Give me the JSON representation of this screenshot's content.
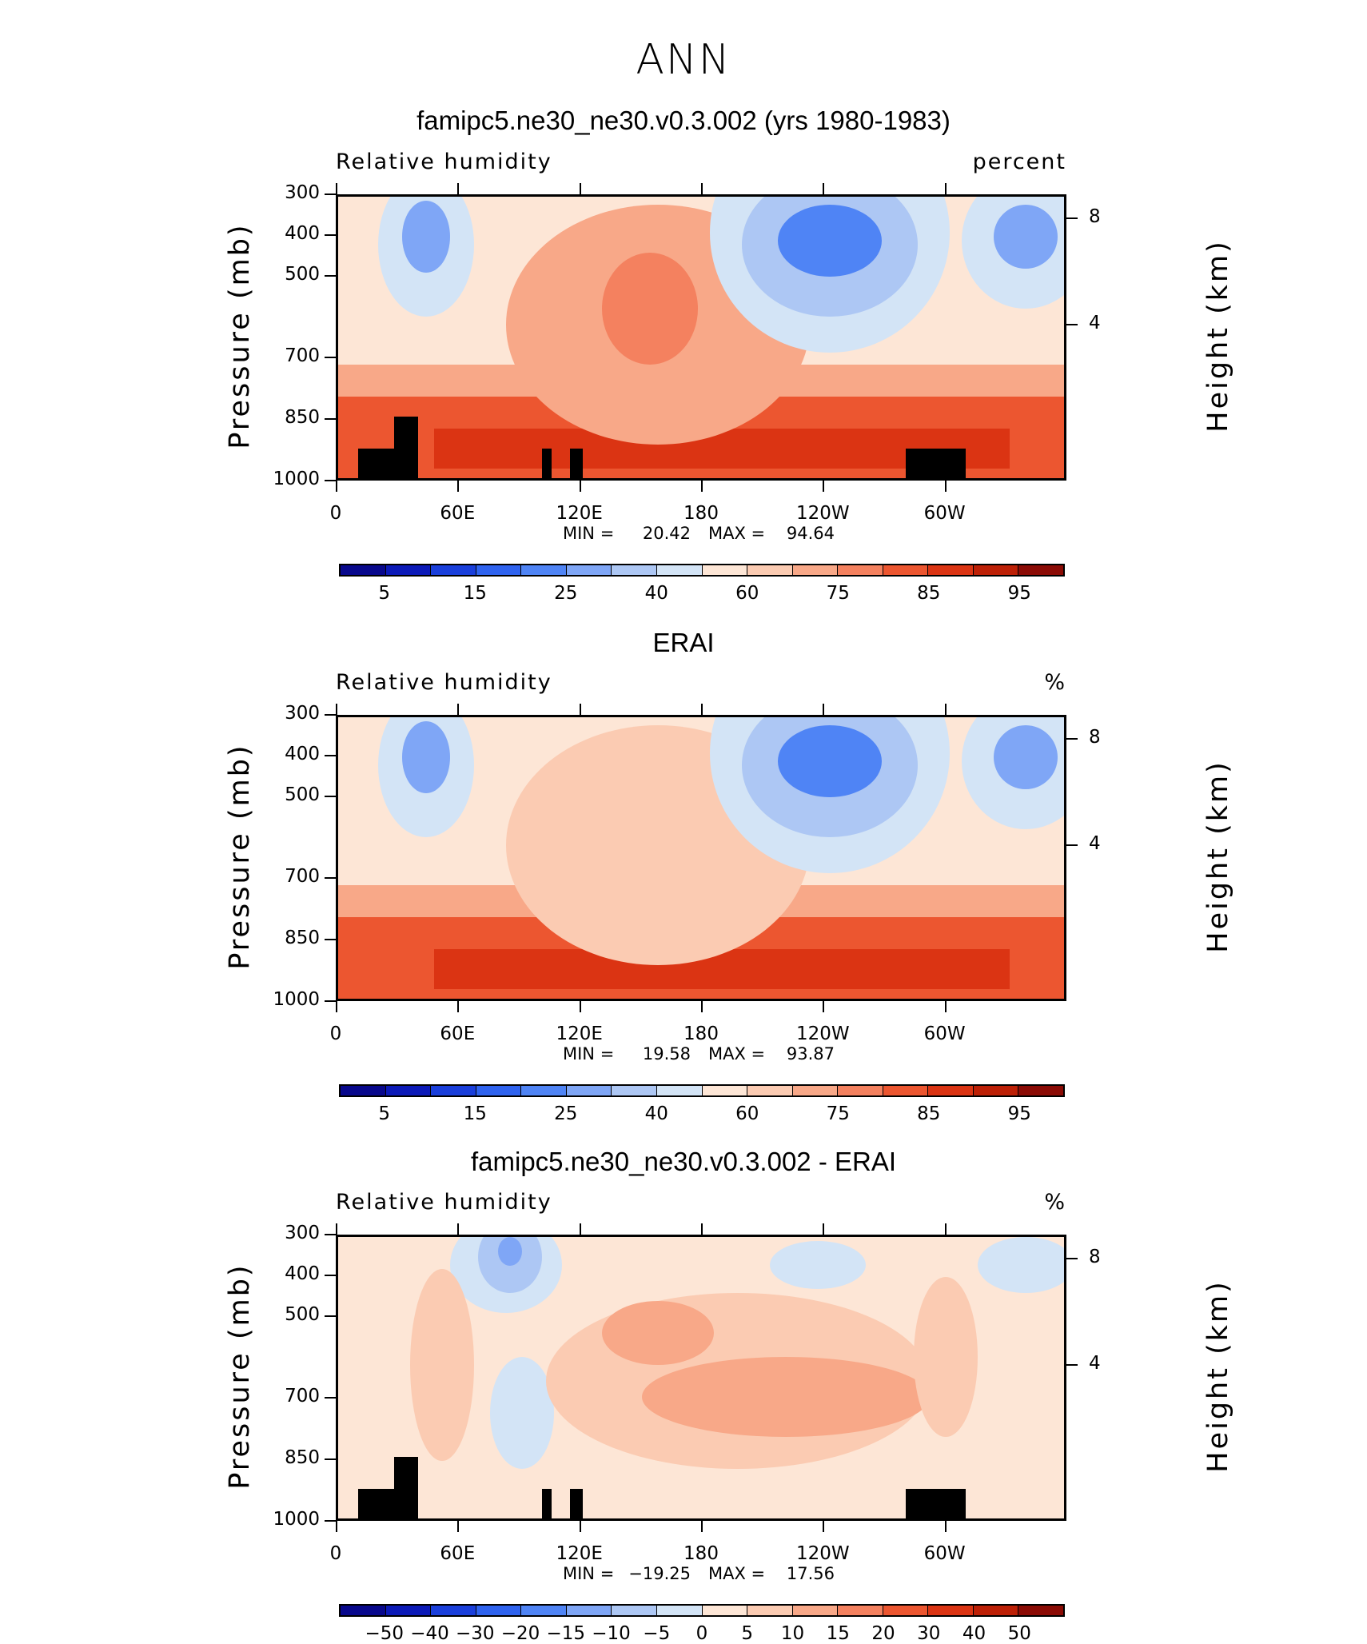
{
  "page": {
    "title": "ANN"
  },
  "palette": {
    "model_rh": [
      "#08088c",
      "#0c1ab8",
      "#1a3fdb",
      "#2f63ef",
      "#4f84f5",
      "#7fa6f6",
      "#adc7f4",
      "#d3e4f6",
      "#fde6d6",
      "#fbcbb2",
      "#f8a888",
      "#f4815f",
      "#ec5630",
      "#db3413",
      "#bd2006",
      "#8b0b05"
    ],
    "diff": [
      "#08088c",
      "#0c1ab8",
      "#1a3fdb",
      "#2f63ef",
      "#4f84f5",
      "#7fa6f6",
      "#adc7f4",
      "#d3e4f6",
      "#fde6d6",
      "#fbcbb2",
      "#f8a888",
      "#f4815f",
      "#ec5630",
      "#db3413",
      "#bd2006",
      "#8b0b05"
    ]
  },
  "panels": [
    {
      "title": "famipc5.ne30_ne30.v0.3.002 (yrs 1980-1983)",
      "variable": "Relative humidity",
      "units": "percent",
      "y_label": "Pressure (mb)",
      "y2_label": "Height (km)",
      "y_ticks": [
        "300",
        "400",
        "500",
        "700",
        "850",
        "1000"
      ],
      "y2_ticks": [
        "8",
        "4"
      ],
      "x_ticks": [
        "0",
        "60E",
        "120E",
        "180",
        "120W",
        "60W"
      ],
      "min_label": "MIN =",
      "min": "20.42",
      "max_label": "MAX =",
      "max": "94.64",
      "colorbar_labels": [
        "5",
        "15",
        "25",
        "40",
        "60",
        "75",
        "85",
        "95"
      ]
    },
    {
      "title": "ERAI",
      "variable": "Relative humidity",
      "units": "%",
      "y_label": "Pressure (mb)",
      "y2_label": "Height (km)",
      "y_ticks": [
        "300",
        "400",
        "500",
        "700",
        "850",
        "1000"
      ],
      "y2_ticks": [
        "8",
        "4"
      ],
      "x_ticks": [
        "0",
        "60E",
        "120E",
        "180",
        "120W",
        "60W"
      ],
      "min_label": "MIN =",
      "min": "19.58",
      "max_label": "MAX =",
      "max": "93.87",
      "colorbar_labels": [
        "5",
        "15",
        "25",
        "40",
        "60",
        "75",
        "85",
        "95"
      ]
    },
    {
      "title": "famipc5.ne30_ne30.v0.3.002 - ERAI",
      "variable": "Relative humidity",
      "units": "%",
      "y_label": "Pressure (mb)",
      "y2_label": "Height (km)",
      "y_ticks": [
        "300",
        "400",
        "500",
        "700",
        "850",
        "1000"
      ],
      "y2_ticks": [
        "8",
        "4"
      ],
      "x_ticks": [
        "0",
        "60E",
        "120E",
        "180",
        "120W",
        "60W"
      ],
      "min_label": "MIN =",
      "min": "−19.25",
      "max_label": "MAX =",
      "max": "17.56",
      "colorbar_labels": [
        "−50",
        "−40",
        "−30",
        "−20",
        "−15",
        "−10",
        "−5",
        "0",
        "5",
        "10",
        "15",
        "20",
        "30",
        "40",
        "50"
      ]
    }
  ],
  "chart_data": [
    {
      "type": "heatmap",
      "title": "famipc5.ne30_ne30.v0.3.002 (yrs 1980-1983)",
      "variable": "Relative humidity",
      "units": "percent",
      "xlabel": "",
      "ylabel": "Pressure (mb)",
      "y2label": "Height (km)",
      "x_ticks": [
        "0",
        "60E",
        "120E",
        "180",
        "120W",
        "60W"
      ],
      "y_ticks_mb": [
        300,
        400,
        500,
        700,
        850,
        1000
      ],
      "y2_ticks_km": [
        8,
        4
      ],
      "min": 20.42,
      "max": 94.64,
      "levels": [
        5,
        10,
        15,
        20,
        25,
        30,
        40,
        50,
        60,
        70,
        75,
        80,
        85,
        90,
        95
      ],
      "colorbar_labels": [
        5,
        15,
        25,
        40,
        60,
        75,
        85,
        95
      ]
    },
    {
      "type": "heatmap",
      "title": "ERAI",
      "variable": "Relative humidity",
      "units": "%",
      "xlabel": "",
      "ylabel": "Pressure (mb)",
      "y2label": "Height (km)",
      "x_ticks": [
        "0",
        "60E",
        "120E",
        "180",
        "120W",
        "60W"
      ],
      "y_ticks_mb": [
        300,
        400,
        500,
        700,
        850,
        1000
      ],
      "y2_ticks_km": [
        8,
        4
      ],
      "min": 19.58,
      "max": 93.87,
      "levels": [
        5,
        10,
        15,
        20,
        25,
        30,
        40,
        50,
        60,
        70,
        75,
        80,
        85,
        90,
        95
      ],
      "colorbar_labels": [
        5,
        15,
        25,
        40,
        60,
        75,
        85,
        95
      ]
    },
    {
      "type": "heatmap",
      "title": "famipc5.ne30_ne30.v0.3.002 - ERAI",
      "variable": "Relative humidity",
      "units": "%",
      "xlabel": "",
      "ylabel": "Pressure (mb)",
      "y2label": "Height (km)",
      "x_ticks": [
        "0",
        "60E",
        "120E",
        "180",
        "120W",
        "60W"
      ],
      "y_ticks_mb": [
        300,
        400,
        500,
        700,
        850,
        1000
      ],
      "y2_ticks_km": [
        8,
        4
      ],
      "min": -19.25,
      "max": 17.56,
      "levels": [
        -50,
        -40,
        -30,
        -20,
        -15,
        -10,
        -5,
        0,
        5,
        10,
        15,
        20,
        30,
        40,
        50
      ],
      "colorbar_labels": [
        -50,
        -40,
        -30,
        -20,
        -15,
        -10,
        -5,
        0,
        5,
        10,
        15,
        20,
        30,
        40,
        50
      ]
    }
  ]
}
